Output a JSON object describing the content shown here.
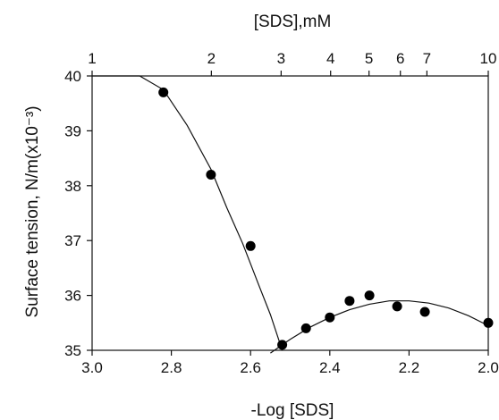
{
  "chart_data": {
    "type": "scatter",
    "title": "",
    "xlabel": "-Log [SDS]",
    "x2label": "[SDS],mM",
    "ylabel": "Surface tension, N/m(x10⁻³)",
    "xlim": [
      3.0,
      2.0
    ],
    "ylim": [
      35,
      40
    ],
    "x_ticks": [
      "3.0",
      "2.8",
      "2.6",
      "2.4",
      "2.2",
      "2.0"
    ],
    "y_ticks": [
      "35",
      "36",
      "37",
      "38",
      "39",
      "40"
    ],
    "x2_ticks": [
      "1",
      "2",
      "3",
      "4",
      "5",
      "6",
      "7",
      "10"
    ],
    "x2_tick_mM": [
      1,
      2,
      3,
      4,
      5,
      6,
      7,
      10
    ],
    "grid": false,
    "series": [
      {
        "x": [
          2.82,
          2.7,
          2.6,
          2.52,
          2.46,
          2.4,
          2.35,
          2.3,
          2.23,
          2.16,
          2.0
        ],
        "y": [
          39.7,
          38.2,
          36.9,
          35.1,
          35.4,
          35.6,
          35.9,
          36.0,
          35.8,
          35.7,
          35.5
        ]
      }
    ],
    "fit_curves": [
      {
        "x": [
          3.0,
          2.88,
          2.82,
          2.76,
          2.7,
          2.66,
          2.62,
          2.58,
          2.55,
          2.52
        ],
        "y": [
          40.0,
          40.0,
          39.75,
          39.1,
          38.3,
          37.6,
          36.95,
          36.2,
          35.65,
          35.0
        ]
      },
      {
        "x": [
          2.55,
          2.5,
          2.45,
          2.4,
          2.35,
          2.3,
          2.25,
          2.2,
          2.15,
          2.1,
          2.05,
          2.0
        ],
        "y": [
          34.95,
          35.2,
          35.42,
          35.6,
          35.74,
          35.84,
          35.9,
          35.9,
          35.86,
          35.77,
          35.63,
          35.45
        ]
      }
    ]
  }
}
